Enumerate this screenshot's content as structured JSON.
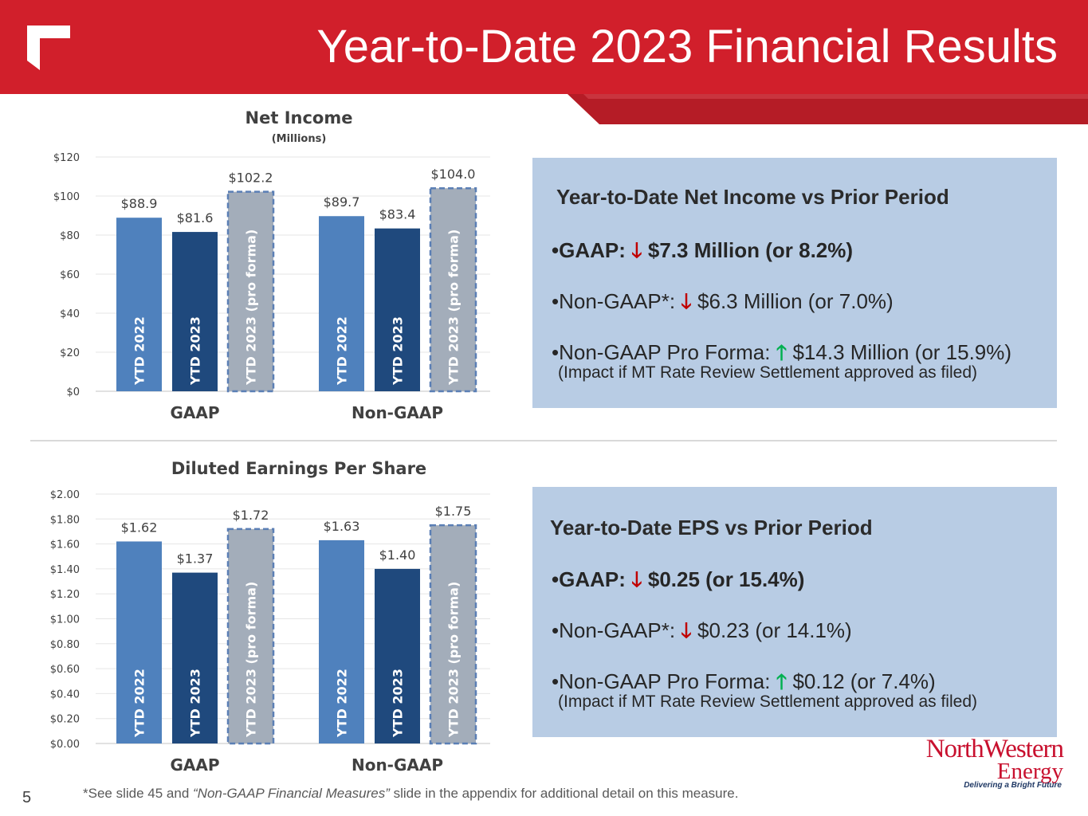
{
  "header": {
    "title": "Year-to-Date 2023 Financial Results"
  },
  "colors": {
    "accent": "#d11f2b",
    "bar_2022": "#4f81bd",
    "bar_2023": "#1f497d",
    "bar_proforma": "#a6a6a6",
    "box_bg": "#b8cce4",
    "down": "#c00000",
    "up": "#00b050"
  },
  "chart_data": [
    {
      "type": "bar",
      "title": "Net Income",
      "subtitle": "(Millions)",
      "categories": [
        "GAAP",
        "Non-GAAP"
      ],
      "series": [
        {
          "name": "YTD 2022",
          "values": [
            88.9,
            89.7
          ],
          "labels": [
            "$88.9",
            "$89.7"
          ]
        },
        {
          "name": "YTD 2023",
          "values": [
            81.6,
            83.4
          ],
          "labels": [
            "$81.6",
            "$83.4"
          ]
        },
        {
          "name": "YTD 2023 (pro forma)",
          "values": [
            102.2,
            104.0
          ],
          "labels": [
            "$102.2",
            "$104.0"
          ]
        }
      ],
      "ylim": [
        0,
        120
      ],
      "yticks": [
        "$0",
        "$20",
        "$40",
        "$60",
        "$80",
        "$100",
        "$120"
      ],
      "grid": true
    },
    {
      "type": "bar",
      "title": "Diluted Earnings Per Share",
      "subtitle": "",
      "categories": [
        "GAAP",
        "Non-GAAP"
      ],
      "series": [
        {
          "name": "YTD 2022",
          "values": [
            1.62,
            1.63
          ],
          "labels": [
            "$1.62",
            "$1.63"
          ]
        },
        {
          "name": "YTD 2023",
          "values": [
            1.37,
            1.4
          ],
          "labels": [
            "$1.37",
            "$1.40"
          ]
        },
        {
          "name": "YTD 2023 (pro forma)",
          "values": [
            1.72,
            1.75
          ],
          "labels": [
            "$1.72",
            "$1.75"
          ]
        }
      ],
      "ylim": [
        0,
        2.0
      ],
      "yticks": [
        "$0.00",
        "$0.20",
        "$0.40",
        "$0.60",
        "$0.80",
        "$1.00",
        "$1.20",
        "$1.40",
        "$1.60",
        "$1.80",
        "$2.00"
      ],
      "grid": true
    }
  ],
  "net_income_box": {
    "title": "Year-to-Date Net Income vs Prior Period",
    "gaap_prefix": "•GAAP: ",
    "gaap_text": " $7.3 Million (or 8.2%)",
    "nongaap_prefix": "•Non-GAAP*: ",
    "nongaap_text": "  $6.3 Million (or 7.0%)",
    "proforma_prefix": "•Non-GAAP Pro Forma: ",
    "proforma_text": " $14.3 Million (or 15.9%)",
    "note": "(Impact if MT Rate Review Settlement approved as filed)"
  },
  "eps_box": {
    "title": "Year-to-Date EPS vs Prior Period",
    "gaap_prefix": "•GAAP: ",
    "gaap_text": " $0.25 (or 15.4%)",
    "nongaap_prefix": "•Non-GAAP*: ",
    "nongaap_text": " $0.23 (or 14.1%)",
    "proforma_prefix": "•Non-GAAP Pro Forma: ",
    "proforma_text": " $0.12 (or 7.4%)",
    "note": "(Impact if MT Rate Review Settlement approved as filed)"
  },
  "arrows": {
    "down": "🡓",
    "up": "🡑"
  },
  "footer": {
    "page_number": "5",
    "footnote_pre": "*See slide 45 and ",
    "footnote_em": "“Non-GAAP Financial Measures”",
    "footnote_post": " slide in the appendix for additional detail on this measure."
  },
  "logo": {
    "line1": "NorthWestern",
    "line2": "Energy",
    "tagline": "Delivering a Bright Future"
  }
}
